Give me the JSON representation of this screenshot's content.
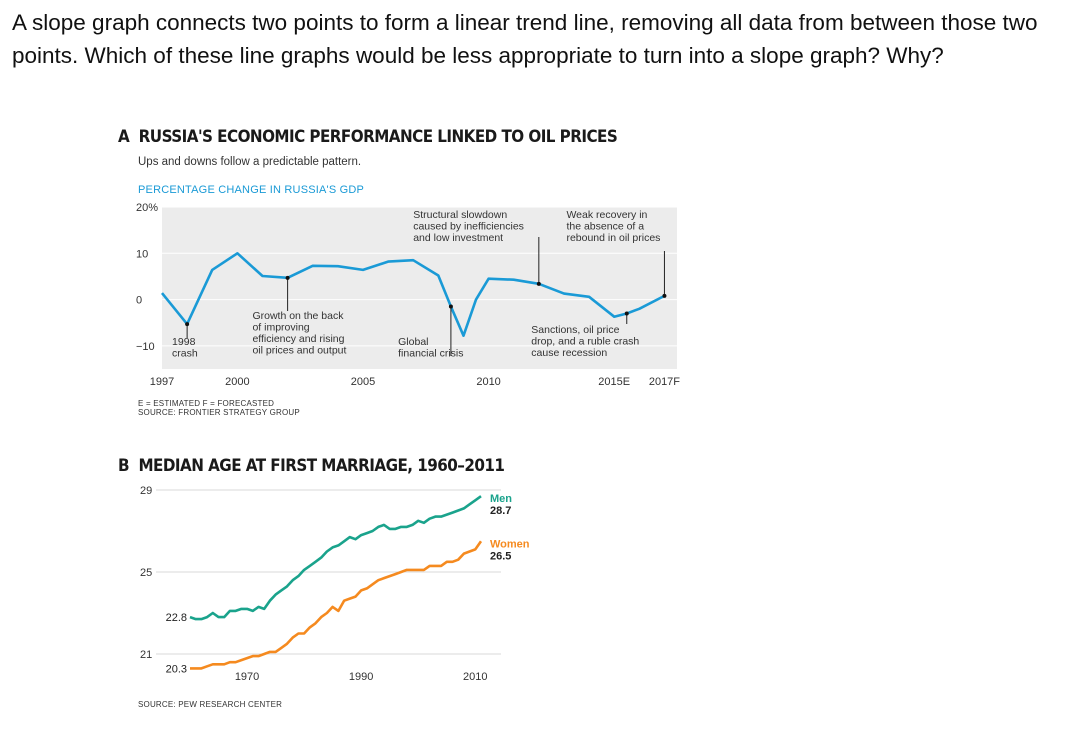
{
  "question": "A slope graph connects two points to form a linear trend line, removing all data from between those two points. Which of these line graphs would be less appropriate to turn into a slope graph? Why?",
  "colors": {
    "blue": "#1a9ad6",
    "men": "#1aa38c",
    "women": "#f58a1f",
    "panel": "#ececec"
  },
  "chart_data": [
    {
      "type": "line",
      "panel_letter": "A",
      "title": "RUSSIA'S ECONOMIC PERFORMANCE LINKED TO OIL PRICES",
      "subtitle": "Ups and downs follow a predictable pattern.",
      "ylabel": "PERCENTAGE CHANGE IN RUSSIA'S GDP",
      "ylim": [
        -15,
        20
      ],
      "xlim": [
        1997,
        2017.5
      ],
      "yticks": [
        {
          "v": 20,
          "label": "20%"
        },
        {
          "v": 10,
          "label": "10"
        },
        {
          "v": 0,
          "label": "0"
        },
        {
          "v": -10,
          "label": "−10"
        }
      ],
      "xticks": [
        {
          "v": 1997,
          "label": "1997"
        },
        {
          "v": 2000,
          "label": "2000"
        },
        {
          "v": 2005,
          "label": "2005"
        },
        {
          "v": 2010,
          "label": "2010"
        },
        {
          "v": 2015,
          "label": "2015E"
        },
        {
          "v": 2017,
          "label": "2017F"
        }
      ],
      "x": [
        1997,
        1998,
        1999,
        2000,
        2001,
        2002,
        2003,
        2004,
        2005,
        2006,
        2007,
        2008,
        2008.5,
        2009,
        2009.5,
        2010,
        2011,
        2012,
        2013,
        2014,
        2015,
        2015.5,
        2016,
        2017
      ],
      "values": [
        1.4,
        -5.3,
        6.4,
        10.0,
        5.1,
        4.7,
        7.3,
        7.2,
        6.4,
        8.2,
        8.5,
        5.2,
        -1.5,
        -7.8,
        0,
        4.5,
        4.3,
        3.4,
        1.3,
        0.6,
        -3.7,
        -3.0,
        -2.0,
        0.8
      ],
      "annotations": [
        {
          "lines": [
            "1998",
            "crash"
          ],
          "x": 1998,
          "y": -5.3
        },
        {
          "lines": [
            "Growth on the back",
            "of improving",
            "efficiency and rising",
            "oil prices and output"
          ],
          "x": 2002,
          "y": 4.7
        },
        {
          "lines": [
            "Global",
            "financial crisis"
          ],
          "x": 2008.5,
          "y": -1.5
        },
        {
          "lines": [
            "Structural slowdown",
            "caused by inefficiencies",
            "and low investment"
          ],
          "x": 2012,
          "y": 3.4
        },
        {
          "lines": [
            "Sanctions, oil price",
            "drop, and a ruble crash",
            "cause recession"
          ],
          "x": 2015.5,
          "y": -3.0
        },
        {
          "lines": [
            "Weak recovery in",
            "the absence of a",
            "rebound in oil prices"
          ],
          "x": 2017,
          "y": 0.8
        }
      ],
      "footnote": "E = ESTIMATED  F = FORECASTED",
      "source": "SOURCE:  FRONTIER STRATEGY GROUP"
    },
    {
      "type": "line",
      "panel_letter": "B",
      "title": "MEDIAN AGE AT FIRST MARRIAGE, 1960–2011",
      "ylim": [
        21,
        29
      ],
      "xlim": [
        1960,
        2011
      ],
      "yticks": [
        {
          "v": 29,
          "label": "29"
        },
        {
          "v": 25,
          "label": "25"
        },
        {
          "v": 21,
          "label": "21"
        }
      ],
      "xticks": [
        {
          "v": 1970,
          "label": "1970"
        },
        {
          "v": 1990,
          "label": "1990"
        },
        {
          "v": 2010,
          "label": "2010"
        }
      ],
      "series": [
        {
          "name": "Men",
          "end_label": "28.7",
          "start_label": "22.8",
          "x": [
            1960,
            1961,
            1962,
            1963,
            1964,
            1965,
            1966,
            1967,
            1968,
            1969,
            1970,
            1971,
            1972,
            1973,
            1974,
            1975,
            1976,
            1977,
            1978,
            1979,
            1980,
            1981,
            1982,
            1983,
            1984,
            1985,
            1986,
            1987,
            1988,
            1989,
            1990,
            1991,
            1992,
            1993,
            1994,
            1995,
            1996,
            1997,
            1998,
            1999,
            2000,
            2001,
            2002,
            2003,
            2004,
            2005,
            2006,
            2007,
            2008,
            2009,
            2010,
            2011
          ],
          "values": [
            22.8,
            22.7,
            22.7,
            22.8,
            23.0,
            22.8,
            22.8,
            23.1,
            23.1,
            23.2,
            23.2,
            23.1,
            23.3,
            23.2,
            23.6,
            23.9,
            24.1,
            24.3,
            24.6,
            24.8,
            25.1,
            25.3,
            25.5,
            25.7,
            26.0,
            26.2,
            26.3,
            26.5,
            26.7,
            26.6,
            26.8,
            26.9,
            27.0,
            27.2,
            27.3,
            27.1,
            27.1,
            27.2,
            27.2,
            27.3,
            27.5,
            27.4,
            27.6,
            27.7,
            27.7,
            27.8,
            27.9,
            28.0,
            28.1,
            28.3,
            28.5,
            28.7
          ]
        },
        {
          "name": "Women",
          "end_label": "26.5",
          "start_label": "20.3",
          "x": [
            1960,
            1961,
            1962,
            1963,
            1964,
            1965,
            1966,
            1967,
            1968,
            1969,
            1970,
            1971,
            1972,
            1973,
            1974,
            1975,
            1976,
            1977,
            1978,
            1979,
            1980,
            1981,
            1982,
            1983,
            1984,
            1985,
            1986,
            1987,
            1988,
            1989,
            1990,
            1991,
            1992,
            1993,
            1994,
            1995,
            1996,
            1997,
            1998,
            1999,
            2000,
            2001,
            2002,
            2003,
            2004,
            2005,
            2006,
            2007,
            2008,
            2009,
            2010,
            2011
          ],
          "values": [
            20.3,
            20.3,
            20.3,
            20.4,
            20.5,
            20.5,
            20.5,
            20.6,
            20.6,
            20.7,
            20.8,
            20.9,
            20.9,
            21.0,
            21.1,
            21.1,
            21.3,
            21.5,
            21.8,
            22.0,
            22.0,
            22.3,
            22.5,
            22.8,
            23.0,
            23.3,
            23.1,
            23.6,
            23.7,
            23.8,
            24.1,
            24.2,
            24.4,
            24.6,
            24.7,
            24.8,
            24.9,
            25.0,
            25.1,
            25.1,
            25.1,
            25.1,
            25.3,
            25.3,
            25.3,
            25.5,
            25.5,
            25.6,
            25.9,
            26.0,
            26.1,
            26.5
          ]
        }
      ],
      "source": "SOURCE: PEW RESEARCH CENTER"
    }
  ]
}
